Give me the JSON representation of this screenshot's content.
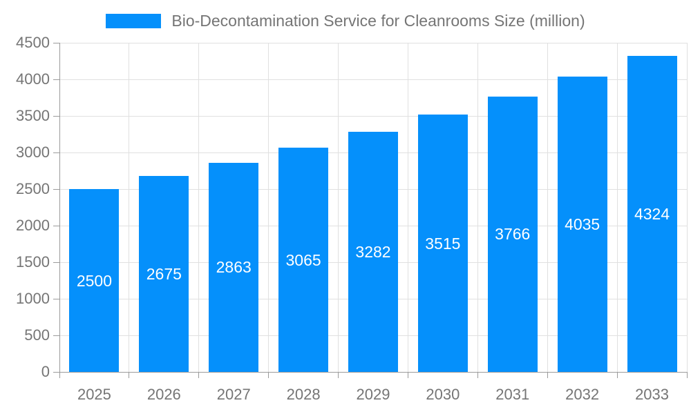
{
  "legend": {
    "label": "Bio-Decontamination Service for Cleanrooms Size (million)"
  },
  "colors": {
    "bar": "#0590fb",
    "text": "#757575",
    "grid": "#e0e0e0",
    "axis": "#9a9a9a",
    "value_label": "#ffffff",
    "background": "#ffffff"
  },
  "chart_data": {
    "type": "bar",
    "title": "Bio-Decontamination Service for Cleanrooms Size (million)",
    "categories": [
      "2025",
      "2026",
      "2027",
      "2028",
      "2029",
      "2030",
      "2031",
      "2032",
      "2033"
    ],
    "values": [
      2500,
      2675,
      2863,
      3065,
      3282,
      3515,
      3766,
      4035,
      4324
    ],
    "xlabel": "",
    "ylabel": "",
    "ylim": [
      0,
      4500
    ],
    "ytick_step": 500,
    "yticks": [
      "0",
      "500",
      "1000",
      "1500",
      "2000",
      "2500",
      "3000",
      "3500",
      "4000",
      "4500"
    ],
    "grid": true,
    "legend_position": "top",
    "value_label_position": "inside-center"
  }
}
